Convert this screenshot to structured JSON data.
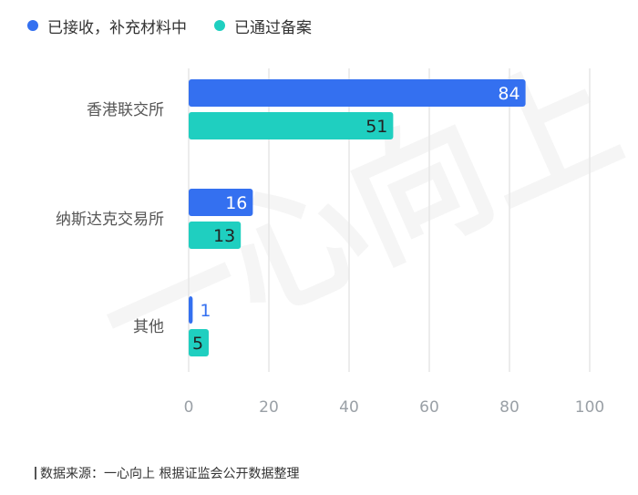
{
  "legend": [
    {
      "label": "已接收，补充材料中",
      "color": "#3470f0"
    },
    {
      "label": "已通过备案",
      "color": "#1fcfc0"
    }
  ],
  "watermark": "一心向上",
  "source": "数据来源：一心向上 根据证监会公开数据整理",
  "chart_data": {
    "type": "bar",
    "orientation": "horizontal",
    "categories": [
      "香港联交所",
      "纳斯达克交易所",
      "其他"
    ],
    "series": [
      {
        "name": "已接收，补充材料中",
        "color": "#3470f0",
        "values": [
          84,
          16,
          1
        ]
      },
      {
        "name": "已通过备案",
        "color": "#1fcfc0",
        "values": [
          51,
          13,
          5
        ]
      }
    ],
    "xlim": [
      0,
      100
    ],
    "xticks": [
      0,
      20,
      40,
      60,
      80,
      100
    ],
    "grid": true,
    "legend_position": "top-left"
  }
}
